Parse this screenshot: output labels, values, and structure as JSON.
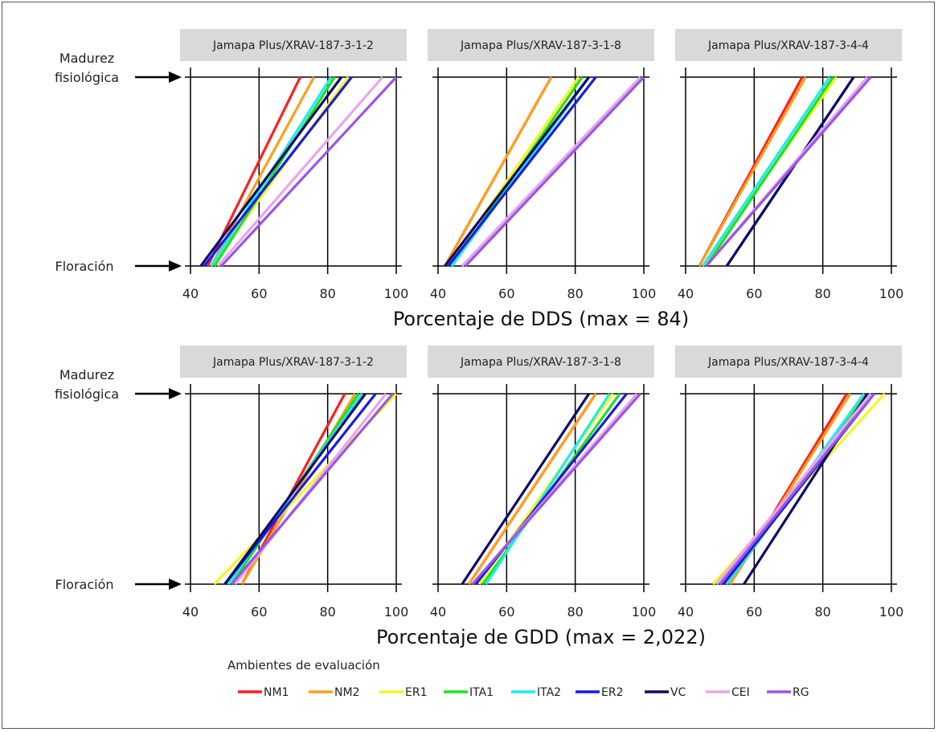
{
  "chart_data": [
    {
      "type": "line",
      "xlabel": "Porcentaje de DDS (max = 84)",
      "xlim": [
        40,
        100
      ],
      "xticks": [
        40,
        60,
        80,
        100
      ],
      "stages": [
        "Floración",
        "Madurez fisiológica"
      ],
      "panels": [
        {
          "title": "Jamapa Plus/XRAV-187-3-1-2",
          "series": [
            {
              "name": "NM1",
              "values": [
                45,
                72
              ]
            },
            {
              "name": "NM2",
              "values": [
                46,
                76
              ]
            },
            {
              "name": "ER1",
              "values": [
                46,
                86
              ]
            },
            {
              "name": "ITA1",
              "values": [
                47,
                82
              ]
            },
            {
              "name": "ITA2",
              "values": [
                46,
                81
              ]
            },
            {
              "name": "ER2",
              "values": [
                44,
                87
              ]
            },
            {
              "name": "VC",
              "values": [
                43,
                84
              ]
            },
            {
              "name": "CEI",
              "values": [
                48,
                96
              ]
            },
            {
              "name": "RG",
              "values": [
                49,
                100
              ]
            }
          ]
        },
        {
          "title": "Jamapa Plus/XRAV-187-3-1-8",
          "series": [
            {
              "name": "NM1",
              "values": [
                42,
                73
              ]
            },
            {
              "name": "NM2",
              "values": [
                42,
                73
              ]
            },
            {
              "name": "ER1",
              "values": [
                43,
                81
              ]
            },
            {
              "name": "ITA1",
              "values": [
                44,
                82
              ]
            },
            {
              "name": "ITA2",
              "values": [
                44,
                84
              ]
            },
            {
              "name": "ER2",
              "values": [
                43,
                86
              ]
            },
            {
              "name": "VC",
              "values": [
                42,
                84
              ]
            },
            {
              "name": "CEI",
              "values": [
                47,
                99
              ]
            },
            {
              "name": "RG",
              "values": [
                48,
                100
              ]
            }
          ]
        },
        {
          "title": "Jamapa Plus/XRAV-187-3-4-4",
          "series": [
            {
              "name": "NM1",
              "values": [
                44,
                74
              ]
            },
            {
              "name": "NM2",
              "values": [
                44,
                75
              ]
            },
            {
              "name": "ER1",
              "values": [
                45,
                84
              ]
            },
            {
              "name": "ITA1",
              "values": [
                46,
                83
              ]
            },
            {
              "name": "ITA2",
              "values": [
                45,
                82
              ]
            },
            {
              "name": "ER2",
              "values": [
                52,
                89
              ]
            },
            {
              "name": "VC",
              "values": [
                52,
                89
              ]
            },
            {
              "name": "CEI",
              "values": [
                46,
                93
              ]
            },
            {
              "name": "RG",
              "values": [
                46,
                94
              ]
            }
          ]
        }
      ]
    },
    {
      "type": "line",
      "xlabel": "Porcentaje de GDD (max =  2,022)",
      "xlim": [
        40,
        100
      ],
      "xticks": [
        40,
        60,
        80,
        100
      ],
      "stages": [
        "Floración",
        "Madurez fisiológica"
      ],
      "panels": [
        {
          "title": "Jamapa Plus/XRAV-187-3-1-2",
          "series": [
            {
              "name": "NM1",
              "values": [
                55,
                85
              ]
            },
            {
              "name": "NM2",
              "values": [
                55,
                88
              ]
            },
            {
              "name": "ER1",
              "values": [
                47,
                100
              ]
            },
            {
              "name": "ITA1",
              "values": [
                52,
                89
              ]
            },
            {
              "name": "ITA2",
              "values": [
                51,
                90
              ]
            },
            {
              "name": "ER2",
              "values": [
                50,
                94
              ]
            },
            {
              "name": "VC",
              "values": [
                50,
                91
              ]
            },
            {
              "name": "CEI",
              "values": [
                53,
                97
              ]
            },
            {
              "name": "RG",
              "values": [
                52,
                99
              ]
            }
          ]
        },
        {
          "title": "Jamapa Plus/XRAV-187-3-1-8",
          "series": [
            {
              "name": "NM1",
              "values": [
                49,
                86
              ]
            },
            {
              "name": "NM2",
              "values": [
                49,
                86
              ]
            },
            {
              "name": "ER1",
              "values": [
                52,
                91
              ]
            },
            {
              "name": "ITA1",
              "values": [
                53,
                93
              ]
            },
            {
              "name": "ITA2",
              "values": [
                54,
                90
              ]
            },
            {
              "name": "ER2",
              "values": [
                51,
                95
              ]
            },
            {
              "name": "VC",
              "values": [
                47,
                84
              ]
            },
            {
              "name": "CEI",
              "values": [
                50,
                98
              ]
            },
            {
              "name": "RG",
              "values": [
                50,
                99
              ]
            }
          ]
        },
        {
          "title": "Jamapa Plus/XRAV-187-3-4-4",
          "series": [
            {
              "name": "NM1",
              "values": [
                53,
                87
              ]
            },
            {
              "name": "NM2",
              "values": [
                53,
                88
              ]
            },
            {
              "name": "ER1",
              "values": [
                48,
                98
              ]
            },
            {
              "name": "ITA1",
              "values": [
                52,
                93
              ]
            },
            {
              "name": "ITA2",
              "values": [
                52,
                92
              ]
            },
            {
              "name": "ER2",
              "values": [
                51,
                95
              ]
            },
            {
              "name": "VC",
              "values": [
                57,
                93
              ]
            },
            {
              "name": "CEI",
              "values": [
                49,
                94
              ]
            },
            {
              "name": "RG",
              "values": [
                50,
                95
              ]
            }
          ]
        }
      ]
    }
  ],
  "legend": {
    "title": "Ambientes de evaluación",
    "items": [
      {
        "name": "NM1",
        "color": "#ff1f1f"
      },
      {
        "name": "NM2",
        "color": "#ff9f1a"
      },
      {
        "name": "ER1",
        "color": "#f5f51f"
      },
      {
        "name": "ITA1",
        "color": "#1fe01f"
      },
      {
        "name": "ITA2",
        "color": "#1fe9f0"
      },
      {
        "name": "ER2",
        "color": "#1a1ae6"
      },
      {
        "name": "VC",
        "color": "#0b0b66"
      },
      {
        "name": "CEI",
        "color": "#e8a6e8"
      },
      {
        "name": "RG",
        "color": "#9a55e8"
      }
    ]
  },
  "colors": {
    "strip_background": "#d9d9d9",
    "gridline": "#000000"
  }
}
